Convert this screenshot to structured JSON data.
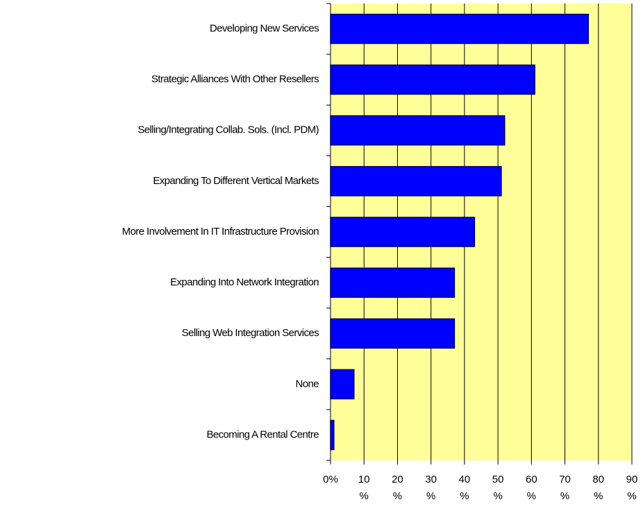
{
  "chart_data": {
    "type": "barh",
    "categories": [
      "Developing New Services",
      "Strategic Alliances With Other Resellers",
      "Selling/Integrating Collab. Sols. (Incl. PDM)",
      "Expanding To Different Vertical Markets",
      "More Involvement In IT Infrastructure Provision",
      "Expanding Into Network Integration",
      "Selling Web Integration Services",
      "None",
      "Becoming A Rental Centre"
    ],
    "values": [
      77,
      61,
      52,
      51,
      43,
      37,
      37,
      7,
      1
    ],
    "color": "#0000ff",
    "xlim": [
      0,
      90
    ],
    "xticks": [
      {
        "value": 0,
        "label": "0%"
      },
      {
        "value": 10,
        "label": "10 %"
      },
      {
        "value": 20,
        "label": "20 %"
      },
      {
        "value": 30,
        "label": "30 %"
      },
      {
        "value": 40,
        "label": "40 %"
      },
      {
        "value": 50,
        "label": "50 %"
      },
      {
        "value": 60,
        "label": "60 %"
      },
      {
        "value": 70,
        "label": "70 %"
      },
      {
        "value": 80,
        "label": "80 %"
      },
      {
        "value": 90,
        "label": "90 %"
      }
    ],
    "grid": true,
    "background": "#ffff99"
  }
}
